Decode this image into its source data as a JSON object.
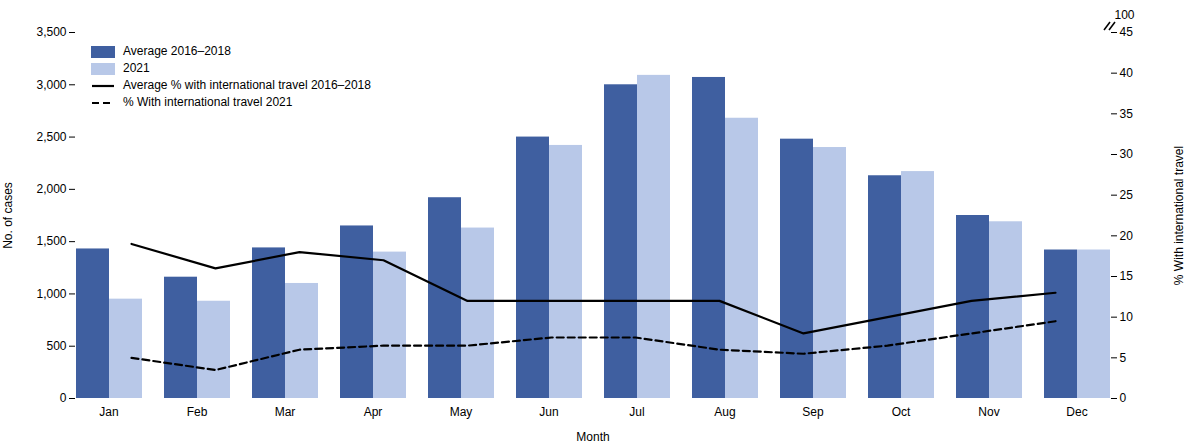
{
  "chart_data": {
    "type": "bar",
    "categories": [
      "Jan",
      "Feb",
      "Mar",
      "Apr",
      "May",
      "Jun",
      "Jul",
      "Aug",
      "Sep",
      "Oct",
      "Nov",
      "Dec"
    ],
    "series": [
      {
        "name": "Average 2016–2018",
        "type": "bar",
        "color": "#3F5FA0",
        "values": [
          1430,
          1160,
          1440,
          1650,
          1920,
          2500,
          3000,
          3070,
          2480,
          2130,
          1750,
          1420
        ]
      },
      {
        "name": "2021",
        "type": "bar",
        "color": "#B8C8E8",
        "values": [
          950,
          930,
          1100,
          1400,
          1630,
          2420,
          3090,
          2680,
          2400,
          2170,
          1690,
          1420
        ]
      },
      {
        "name": "Average % with international travel 2016–2018",
        "type": "line",
        "axis": "y2",
        "color": "black",
        "line_style": "solid",
        "values": [
          19,
          16,
          18,
          17,
          12,
          12,
          12,
          12,
          8,
          10,
          12,
          13
        ]
      },
      {
        "name": "% With international travel 2021",
        "type": "line",
        "axis": "y2",
        "color": "black",
        "line_style": "dashed",
        "values": [
          5,
          3.5,
          6,
          6.5,
          6.5,
          7.5,
          7.5,
          6,
          5.5,
          6.5,
          8,
          9.5
        ]
      }
    ],
    "xlabel": "Month",
    "ylabel": "No. of cases",
    "y2label": "% With international travel",
    "ylim": [
      0,
      3500
    ],
    "yticks": [
      0,
      500,
      {
        "value": 1000,
        "label": "1,000"
      },
      {
        "value": 1500,
        "label": "1,500"
      },
      {
        "value": 2000,
        "label": "2,000"
      },
      {
        "value": 2500,
        "label": "2,500"
      },
      {
        "value": 3000,
        "label": "3,000"
      },
      {
        "value": 3500,
        "label": "3,500"
      }
    ],
    "y2lim": [
      0,
      45
    ],
    "y2ticks": [
      0,
      5,
      10,
      15,
      20,
      25,
      30,
      35,
      40,
      45
    ],
    "grid": false,
    "legend": "upper left",
    "annotations": [
      {
        "text": "100"
      }
    ]
  }
}
